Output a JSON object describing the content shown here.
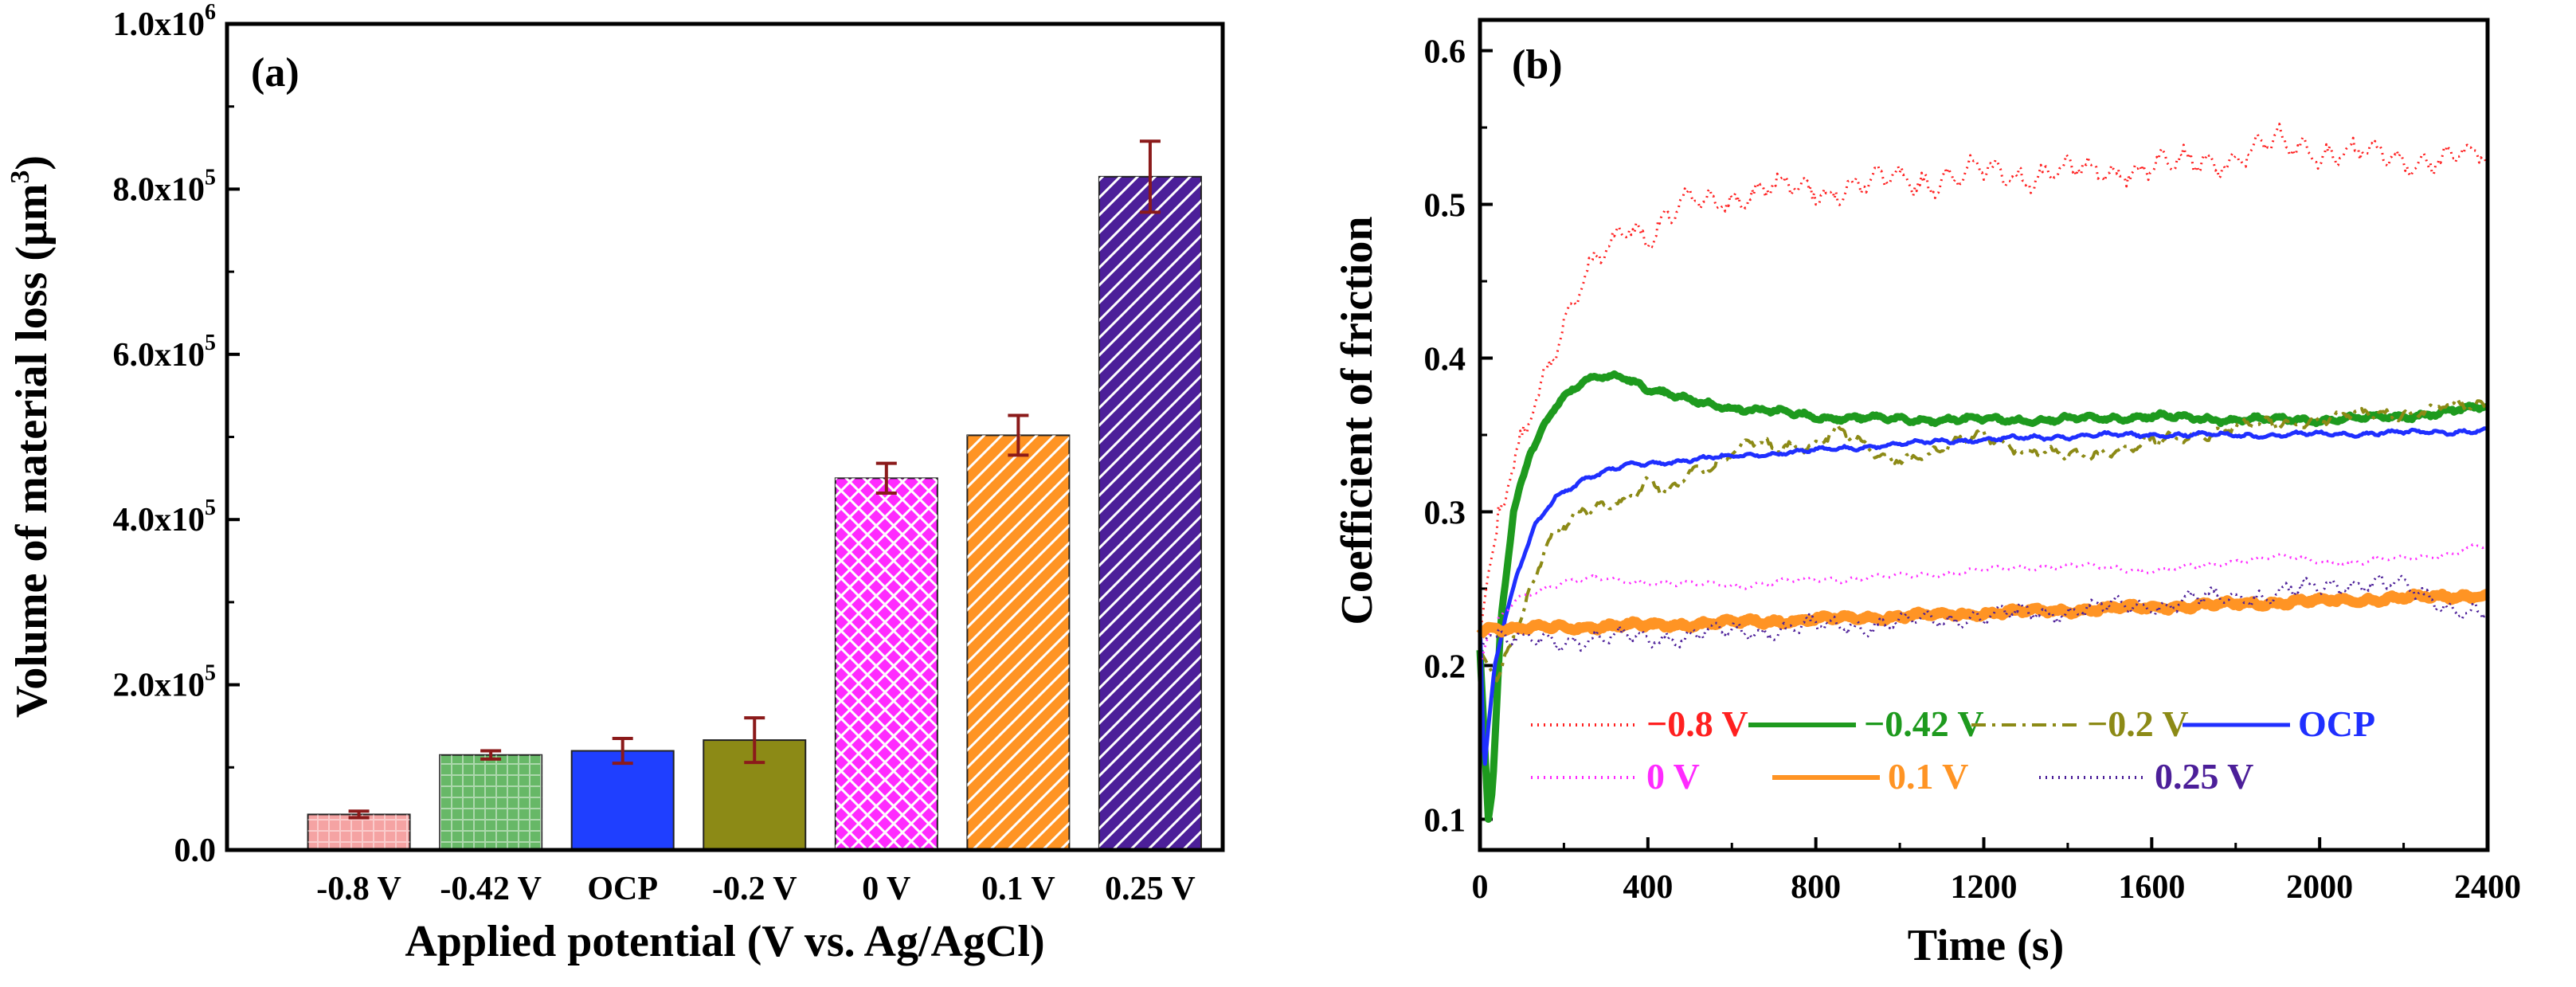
{
  "chart_data": [
    {
      "type": "bar",
      "panel_label": "(a)",
      "xlabel": "Applied potential (V vs. Ag/AgCl)",
      "ylabel_main": "Volume of material loss (μm",
      "ylabel_sup": "3",
      "ylabel_end": ")",
      "ylim": [
        0,
        1000000
      ],
      "yticks": [
        {
          "value": 0,
          "label": "0.0",
          "exp": ""
        },
        {
          "value": 200000,
          "label": "2.0x10",
          "exp": "5"
        },
        {
          "value": 400000,
          "label": "4.0x10",
          "exp": "5"
        },
        {
          "value": 600000,
          "label": "6.0x10",
          "exp": "5"
        },
        {
          "value": 800000,
          "label": "8.0x10",
          "exp": "5"
        },
        {
          "value": 1000000,
          "label": "1.0x10",
          "exp": "6"
        }
      ],
      "categories": [
        "-0.8 V",
        "-0.42 V",
        "OCP",
        "-0.2 V",
        "0 V",
        "0.1 V",
        "0.25 V"
      ],
      "values": [
        43000,
        115000,
        120000,
        133000,
        450000,
        502000,
        815000
      ],
      "errors": [
        4000,
        5000,
        15000,
        27000,
        18000,
        24000,
        43000
      ],
      "colors": [
        "#f5a3a3",
        "#67b867",
        "#1f3fff",
        "#8c8a16",
        "#ff2bff",
        "#ff9424",
        "#4c1f99"
      ],
      "patterns": [
        "grid",
        "grid",
        "none",
        "none",
        "cross",
        "diag",
        "diag"
      ],
      "error_color": "#8b1a1a"
    },
    {
      "type": "line",
      "panel_label": "(b)",
      "xlabel": "Time (s)",
      "ylabel": "Coefficient of friction",
      "xlim": [
        0,
        2400
      ],
      "ylim": [
        0.08,
        0.62
      ],
      "xticks": [
        0,
        400,
        800,
        1200,
        1600,
        2000,
        2400
      ],
      "yticks": [
        0.1,
        0.2,
        0.3,
        0.4,
        0.5,
        0.6
      ],
      "series": [
        {
          "name": "−0.8 V",
          "color": "#ff2020",
          "style": "dot",
          "width": 3,
          "noise": 0.009,
          "x": [
            0,
            20,
            50,
            100,
            150,
            200,
            250,
            300,
            350,
            400,
            450,
            500,
            600,
            700,
            800,
            1000,
            1200,
            1400,
            1600,
            1800,
            1900,
            2000,
            2200,
            2400
          ],
          "y": [
            0.22,
            0.26,
            0.3,
            0.35,
            0.39,
            0.42,
            0.45,
            0.47,
            0.49,
            0.48,
            0.49,
            0.5,
            0.505,
            0.51,
            0.51,
            0.515,
            0.52,
            0.52,
            0.525,
            0.53,
            0.54,
            0.535,
            0.53,
            0.53
          ]
        },
        {
          "name": "−0.42 V",
          "color": "#1e9a1e",
          "style": "solid",
          "width": 9,
          "noise": 0.002,
          "x": [
            0,
            20,
            30,
            50,
            80,
            120,
            180,
            250,
            300,
            350,
            400,
            500,
            600,
            800,
            1000,
            1200,
            1400,
            1600,
            1800,
            2000,
            2200,
            2400
          ],
          "y": [
            0.21,
            0.1,
            0.12,
            0.23,
            0.3,
            0.34,
            0.37,
            0.385,
            0.388,
            0.388,
            0.38,
            0.372,
            0.368,
            0.362,
            0.36,
            0.36,
            0.36,
            0.362,
            0.36,
            0.36,
            0.362,
            0.368
          ]
        },
        {
          "name": "−0.2 V",
          "color": "#8c8a16",
          "style": "dashdot",
          "width": 4,
          "noise": 0.004,
          "x": [
            0,
            40,
            80,
            120,
            160,
            200,
            250,
            300,
            350,
            400,
            450,
            500,
            550,
            600,
            650,
            700,
            800,
            850,
            900,
            950,
            1000,
            1100,
            1200,
            1300,
            1400,
            1500,
            1600,
            1700,
            1800,
            2000,
            2200,
            2400
          ],
          "y": [
            0.21,
            0.19,
            0.22,
            0.25,
            0.28,
            0.29,
            0.3,
            0.305,
            0.31,
            0.32,
            0.31,
            0.325,
            0.33,
            0.34,
            0.345,
            0.34,
            0.345,
            0.355,
            0.345,
            0.335,
            0.335,
            0.34,
            0.35,
            0.34,
            0.335,
            0.34,
            0.345,
            0.35,
            0.355,
            0.36,
            0.365,
            0.37
          ]
        },
        {
          "name": "OCP",
          "color": "#1f2fff",
          "style": "solid",
          "width": 5,
          "noise": 0.0015,
          "x": [
            0,
            10,
            20,
            35,
            60,
            90,
            130,
            180,
            250,
            350,
            500,
            700,
            900,
            1100,
            1300,
            1500,
            1700,
            1900,
            2100,
            2300,
            2400
          ],
          "y": [
            0.23,
            0.13,
            0.16,
            0.2,
            0.23,
            0.26,
            0.29,
            0.31,
            0.322,
            0.33,
            0.334,
            0.338,
            0.342,
            0.346,
            0.348,
            0.35,
            0.35,
            0.35,
            0.351,
            0.352,
            0.353
          ]
        },
        {
          "name": "0 V",
          "color": "#ff2bff",
          "style": "dot",
          "width": 3,
          "noise": 0.002,
          "x": [
            0,
            20,
            60,
            100,
            150,
            200,
            300,
            400,
            600,
            800,
            1000,
            1200,
            1400,
            1600,
            1700,
            1800,
            1900,
            2000,
            2100,
            2200,
            2300,
            2400
          ],
          "y": [
            0.2,
            0.22,
            0.235,
            0.245,
            0.25,
            0.255,
            0.256,
            0.254,
            0.252,
            0.256,
            0.258,
            0.262,
            0.265,
            0.262,
            0.264,
            0.268,
            0.271,
            0.268,
            0.267,
            0.27,
            0.272,
            0.278
          ]
        },
        {
          "name": "0.1 V",
          "color": "#ff9424",
          "style": "solid",
          "width": 13,
          "noise": 0.002,
          "x": [
            0,
            20,
            50,
            100,
            200,
            400,
            600,
            800,
            1000,
            1200,
            1400,
            1600,
            1800,
            2000,
            2200,
            2400
          ],
          "y": [
            0.22,
            0.225,
            0.224,
            0.224,
            0.225,
            0.226,
            0.228,
            0.23,
            0.232,
            0.234,
            0.236,
            0.238,
            0.24,
            0.242,
            0.244,
            0.246
          ]
        },
        {
          "name": "0.25 V",
          "color": "#4c1f99",
          "style": "dot",
          "width": 3,
          "noise": 0.006,
          "x": [
            0,
            20,
            50,
            100,
            200,
            400,
            600,
            800,
            1000,
            1200,
            1400,
            1600,
            1800,
            2000,
            2100,
            2200,
            2300,
            2400
          ],
          "y": [
            0.21,
            0.22,
            0.218,
            0.215,
            0.217,
            0.218,
            0.222,
            0.225,
            0.228,
            0.232,
            0.236,
            0.24,
            0.245,
            0.25,
            0.255,
            0.25,
            0.24,
            0.232
          ]
        }
      ]
    }
  ]
}
